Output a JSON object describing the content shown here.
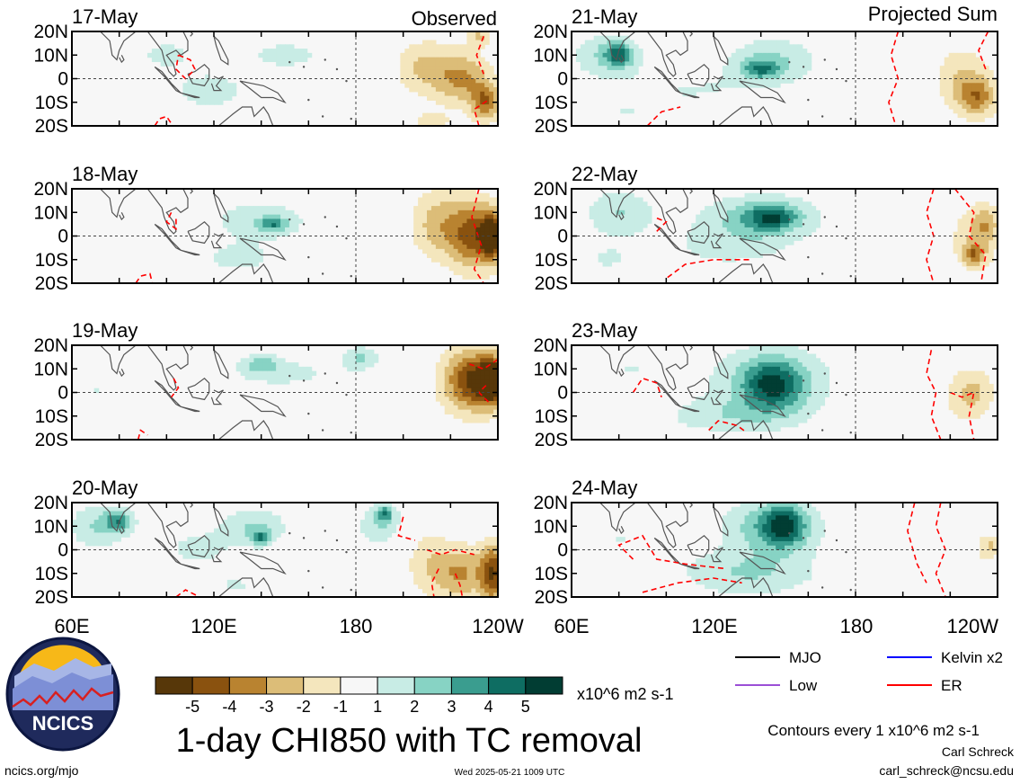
{
  "chart_data": {
    "type": "heatmap",
    "title": "1-day CHI850 with TC removal",
    "units": "x10^6 m2 s-1",
    "column_titles": [
      "Observed",
      "Projected Sum"
    ],
    "observed_dates": [
      "17-May",
      "18-May",
      "19-May",
      "20-May"
    ],
    "projected_dates": [
      "21-May",
      "22-May",
      "23-May",
      "24-May"
    ],
    "lat_ticks": [
      "20N",
      "10N",
      "0",
      "10S",
      "20S"
    ],
    "lat_range": [
      -20,
      20
    ],
    "lon_ticks": [
      "60E",
      "120E",
      "180",
      "120W"
    ],
    "lon_range": [
      60,
      240
    ],
    "colorbar": {
      "tick_labels": [
        "-5",
        "-4",
        "-3",
        "-2",
        "-1",
        "1",
        "2",
        "3",
        "4",
        "5"
      ],
      "colors": [
        "#573709",
        "#8a520f",
        "#b98330",
        "#dcbd78",
        "#f4e6bd",
        "#f7f7f7",
        "#c8ece5",
        "#87d3c4",
        "#3a9d8f",
        "#0e6d62",
        "#013d33"
      ]
    },
    "contour_note": "Contours every 1 x10^6 m2 s-1",
    "legend": [
      {
        "name": "MJO",
        "color": "#000000"
      },
      {
        "name": "Kelvin x2",
        "color": "#0000ff"
      },
      {
        "name": "Low",
        "color": "#9b4fd6"
      },
      {
        "name": "ER",
        "color": "#ff0000"
      }
    ],
    "panels": [
      {
        "col": 0,
        "row": 0,
        "blobs": [
          [
            100,
            10,
            12,
            6,
            1.5
          ],
          [
            118,
            -5,
            14,
            7,
            2
          ],
          [
            150,
            10,
            18,
            6,
            1.5
          ],
          [
            165,
            -15,
            22,
            6,
            1
          ],
          [
            208,
            5,
            12,
            12,
            -2
          ],
          [
            225,
            0,
            12,
            12,
            -3
          ],
          [
            235,
            -10,
            6,
            8,
            -3.5
          ],
          [
            232,
            18,
            5,
            4,
            -2
          ],
          [
            212,
            -18,
            8,
            4,
            -1.5
          ]
        ],
        "er": [
          [
            [
              105,
              10
            ],
            [
              110,
              8
            ],
            [
              112,
              4
            ],
            [
              108,
              0
            ],
            [
              104,
              4
            ],
            [
              105,
              10
            ]
          ],
          [
            [
              95,
              -20
            ],
            [
              97,
              -17
            ],
            [
              100,
              -16
            ],
            [
              102,
              -19
            ]
          ],
          [
            [
              234,
              18
            ],
            [
              231,
              10
            ],
            [
              234,
              2
            ]
          ],
          [
            [
              232,
              -20
            ],
            [
              230,
              -13
            ],
            [
              236,
              -9
            ]
          ]
        ]
      },
      {
        "col": 0,
        "row": 1,
        "blobs": [
          [
            78,
            5,
            10,
            8,
            1
          ],
          [
            140,
            7,
            25,
            10,
            1.5
          ],
          [
            145,
            5,
            6,
            3,
            2.8
          ],
          [
            130,
            -10,
            20,
            8,
            1.2
          ],
          [
            215,
            5,
            12,
            15,
            -2.5
          ],
          [
            230,
            0,
            10,
            15,
            -4
          ],
          [
            238,
            0,
            5,
            10,
            -5
          ]
        ],
        "er": [
          [
            [
              102,
              10
            ],
            [
              100,
              6
            ],
            [
              104,
              3
            ],
            [
              104,
              8
            ]
          ],
          [
            [
              87,
              -20
            ],
            [
              89,
              -17
            ],
            [
              93,
              -16
            ],
            [
              94,
              -20
            ]
          ],
          [
            [
              232,
              20
            ],
            [
              229,
              8
            ],
            [
              233,
              -4
            ],
            [
              230,
              -14
            ],
            [
              234,
              -20
            ]
          ]
        ]
      },
      {
        "col": 0,
        "row": 2,
        "blobs": [
          [
            70,
            0,
            12,
            10,
            1
          ],
          [
            90,
            5,
            10,
            6,
            0.8
          ],
          [
            150,
            8,
            30,
            8,
            1.2
          ],
          [
            140,
            12,
            8,
            4,
            2
          ],
          [
            182,
            15,
            8,
            5,
            2
          ],
          [
            190,
            -10,
            15,
            6,
            0.8
          ],
          [
            225,
            5,
            12,
            15,
            -2.5
          ],
          [
            232,
            5,
            10,
            12,
            -3.5
          ],
          [
            238,
            5,
            5,
            10,
            -5
          ]
        ],
        "er": [
          [
            [
              103,
              6
            ],
            [
              105,
              2
            ],
            [
              102,
              -2
            ]
          ],
          [
            [
              88,
              -20
            ],
            [
              89,
              -16
            ],
            [
              92,
              -18
            ]
          ],
          [
            [
              240,
              14
            ],
            [
              234,
              10
            ],
            [
              228,
              12
            ]
          ],
          [
            [
              236,
              -4
            ],
            [
              232,
              0
            ],
            [
              236,
              4
            ]
          ]
        ]
      },
      {
        "col": 0,
        "row": 3,
        "blobs": [
          [
            70,
            10,
            12,
            10,
            2
          ],
          [
            80,
            12,
            6,
            5,
            3
          ],
          [
            112,
            0,
            18,
            10,
            1.2
          ],
          [
            137,
            10,
            15,
            8,
            2
          ],
          [
            140,
            5,
            4,
            3,
            3
          ],
          [
            190,
            10,
            12,
            10,
            1.5
          ],
          [
            192,
            15,
            4,
            4,
            3
          ],
          [
            130,
            -15,
            18,
            6,
            1
          ],
          [
            88,
            -18,
            8,
            4,
            1
          ],
          [
            210,
            -5,
            10,
            15,
            -1.5
          ],
          [
            225,
            -10,
            12,
            12,
            -3
          ],
          [
            238,
            -10,
            5,
            12,
            -4.5
          ]
        ],
        "er": [
          [
            [
              200,
              14
            ],
            [
              198,
              6
            ],
            [
              205,
              4
            ]
          ],
          [
            [
              210,
              0
            ],
            [
              216,
              -2
            ],
            [
              222,
              0
            ],
            [
              230,
              -2
            ]
          ],
          [
            [
              215,
              -8
            ],
            [
              212,
              -14
            ],
            [
              213,
              -20
            ]
          ],
          [
            [
              222,
              -10
            ],
            [
              224,
              -15
            ],
            [
              225,
              -20
            ]
          ],
          [
            [
              104,
              -20
            ],
            [
              108,
              -17
            ],
            [
              114,
              -20
            ]
          ]
        ]
      },
      {
        "col": 1,
        "row": 0,
        "blobs": [
          [
            75,
            10,
            15,
            10,
            2
          ],
          [
            80,
            10,
            6,
            5,
            3
          ],
          [
            145,
            8,
            20,
            10,
            2
          ],
          [
            140,
            4,
            8,
            4,
            2.8
          ],
          [
            110,
            -5,
            35,
            10,
            1
          ],
          [
            80,
            -15,
            20,
            6,
            0.8
          ],
          [
            225,
            0,
            12,
            14,
            -2
          ],
          [
            232,
            -8,
            8,
            8,
            -3
          ]
        ],
        "er": [
          [
            [
              198,
              20
            ],
            [
              195,
              10
            ],
            [
              198,
              0
            ],
            [
              194,
              -10
            ],
            [
              197,
              -20
            ]
          ],
          [
            [
              92,
              -20
            ],
            [
              98,
              -14
            ],
            [
              106,
              -12
            ]
          ],
          [
            [
              236,
              20
            ],
            [
              232,
              12
            ],
            [
              235,
              4
            ]
          ]
        ]
      },
      {
        "col": 1,
        "row": 1,
        "blobs": [
          [
            80,
            10,
            15,
            10,
            2
          ],
          [
            140,
            8,
            25,
            10,
            2.5
          ],
          [
            145,
            8,
            10,
            5,
            3
          ],
          [
            125,
            -5,
            30,
            10,
            1.2
          ],
          [
            75,
            -10,
            15,
            8,
            1
          ],
          [
            230,
            0,
            12,
            14,
            -1.5
          ],
          [
            235,
            5,
            6,
            8,
            -2
          ],
          [
            230,
            -8,
            5,
            5,
            -3
          ]
        ],
        "er": [
          [
            [
              135,
              -10
            ],
            [
              120,
              -10
            ],
            [
              108,
              -12
            ],
            [
              100,
              -18
            ]
          ],
          [
            [
              96,
              2
            ],
            [
              100,
              6
            ],
            [
              95,
              8
            ]
          ],
          [
            [
              213,
              20
            ],
            [
              210,
              10
            ],
            [
              213,
              0
            ],
            [
              210,
              -10
            ],
            [
              213,
              -20
            ]
          ],
          [
            [
              222,
              20
            ],
            [
              230,
              10
            ],
            [
              228,
              0
            ],
            [
              235,
              -8
            ],
            [
              233,
              -20
            ]
          ]
        ]
      },
      {
        "col": 1,
        "row": 2,
        "blobs": [
          [
            85,
            10,
            25,
            10,
            1
          ],
          [
            145,
            5,
            25,
            15,
            2.5
          ],
          [
            145,
            3,
            12,
            10,
            3.2
          ],
          [
            125,
            -10,
            30,
            8,
            1.5
          ],
          [
            225,
            -2,
            14,
            14,
            -1
          ],
          [
            230,
            0,
            8,
            10,
            -1.5
          ]
        ],
        "er": [
          [
            [
              86,
              0
            ],
            [
              90,
              6
            ],
            [
              96,
              4
            ],
            [
              98,
              -2
            ]
          ],
          [
            [
              118,
              -16
            ],
            [
              122,
              -12
            ],
            [
              130,
              -14
            ],
            [
              134,
              -17
            ]
          ],
          [
            [
              212,
              18
            ],
            [
              210,
              8
            ],
            [
              214,
              0
            ],
            [
              212,
              -10
            ],
            [
              216,
              -20
            ]
          ],
          [
            [
              220,
              0
            ],
            [
              225,
              -2
            ],
            [
              230,
              0
            ],
            [
              228,
              -10
            ],
            [
              230,
              -20
            ]
          ]
        ]
      },
      {
        "col": 1,
        "row": 3,
        "blobs": [
          [
            80,
            5,
            25,
            12,
            1
          ],
          [
            145,
            10,
            20,
            12,
            3
          ],
          [
            150,
            10,
            8,
            8,
            3.5
          ],
          [
            135,
            -10,
            30,
            10,
            2
          ],
          [
            225,
            -8,
            14,
            10,
            -1
          ],
          [
            237,
            2,
            5,
            5,
            -2
          ]
        ],
        "er": [
          [
            [
              86,
              -4
            ],
            [
              80,
              2
            ],
            [
              90,
              6
            ],
            [
              96,
              -4
            ],
            [
              108,
              -6
            ],
            [
              125,
              -8
            ]
          ],
          [
            [
              90,
              -18
            ],
            [
              105,
              -14
            ],
            [
              120,
              -12
            ],
            [
              132,
              -14
            ]
          ],
          [
            [
              205,
              20
            ],
            [
              202,
              8
            ],
            [
              206,
              -6
            ],
            [
              210,
              -14
            ]
          ],
          [
            [
              216,
              20
            ],
            [
              214,
              10
            ],
            [
              218,
              0
            ],
            [
              214,
              -10
            ],
            [
              218,
              -20
            ]
          ]
        ]
      }
    ],
    "credits": {
      "site": "ncics.org/mjo",
      "timestamp": "Wed 2025-05-21 1009 UTC",
      "author": "Carl Schreck",
      "email": "carl_schreck@ncsu.edu",
      "logo_text": "NCICS"
    }
  }
}
